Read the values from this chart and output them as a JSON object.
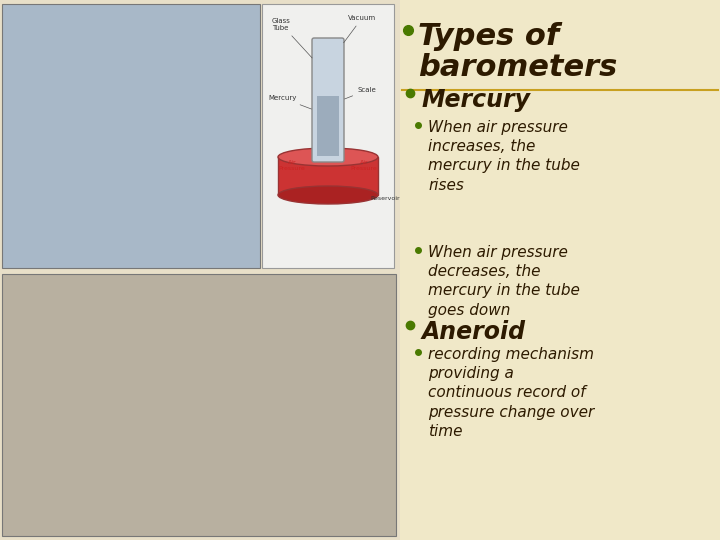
{
  "background_color": "#f0e8c8",
  "divider_color": "#c8a020",
  "title_text": "Types of\nbarometers",
  "title_color": "#2d1a00",
  "title_fontsize": 22,
  "bullet_color": "#4a7a00",
  "items": [
    {
      "level": 1,
      "text": "Mercury",
      "fontsize": 17,
      "fontweight": "bold",
      "color": "#2d1a00"
    },
    {
      "level": 2,
      "text": "When air pressure\nincreases, the\nmercury in the tube\nrises",
      "fontsize": 11,
      "fontweight": "normal",
      "color": "#2d1a00"
    },
    {
      "level": 2,
      "text": "When air pressure\ndecreases, the\nmercury in the tube\ngoes down",
      "fontsize": 11,
      "fontweight": "normal",
      "color": "#2d1a00"
    },
    {
      "level": 1,
      "text": "Aneroid",
      "fontsize": 17,
      "fontweight": "bold",
      "color": "#2d1a00"
    },
    {
      "level": 2,
      "text": "recording mechanism\nproviding a\ncontinuous record of\npressure change over\ntime",
      "fontsize": 11,
      "fontweight": "normal",
      "color": "#2d1a00"
    }
  ]
}
